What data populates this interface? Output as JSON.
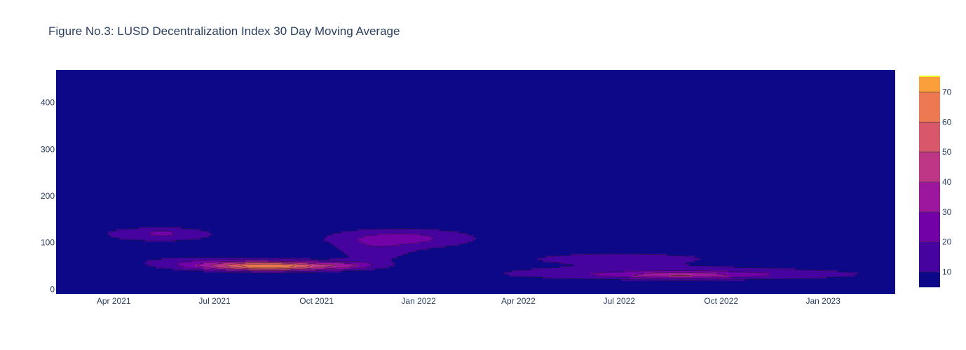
{
  "chart_data": {
    "type": "heatmap",
    "subtype": "contour",
    "title": "Figure No.3: LUSD Decentralization Index 30 Day Moving Average",
    "xlabel": "",
    "ylabel": "",
    "x_tick_labels": [
      "Apr 2021",
      "Jul 2021",
      "Oct 2021",
      "Jan 2022",
      "Apr 2022",
      "Jul 2022",
      "Oct 2022",
      "Jan 2023"
    ],
    "x_ticks": [
      "2021-04-01",
      "2021-07-01",
      "2021-10-01",
      "2022-01-01",
      "2022-04-01",
      "2022-07-01",
      "2022-10-01",
      "2023-01-01"
    ],
    "xlim": [
      "2021-02-08",
      "2023-03-07"
    ],
    "y_tick_labels": [
      "0",
      "100",
      "200",
      "300",
      "400"
    ],
    "y_ticks": [
      0,
      100,
      200,
      300,
      400
    ],
    "ylim": [
      -10,
      470
    ],
    "grid": false,
    "colorscale": "Plasma",
    "background_color": "#0d0887",
    "colorbar": {
      "tick_labels": [
        "10",
        "20",
        "30",
        "40",
        "50",
        "60",
        "70"
      ],
      "ticks": [
        10,
        20,
        30,
        40,
        50,
        60,
        70
      ],
      "range": [
        5,
        75
      ],
      "levels": [
        {
          "lo": 5,
          "hi": 10,
          "color": "#0d0887"
        },
        {
          "lo": 10,
          "hi": 20,
          "color": "#46039f"
        },
        {
          "lo": 20,
          "hi": 30,
          "color": "#7201a8"
        },
        {
          "lo": 30,
          "hi": 40,
          "color": "#9c179e"
        },
        {
          "lo": 40,
          "hi": 50,
          "color": "#bd3786"
        },
        {
          "lo": 50,
          "hi": 60,
          "color": "#d8576b"
        },
        {
          "lo": 60,
          "hi": 70,
          "color": "#ed7953"
        },
        {
          "lo": 70,
          "hi": 75,
          "color": "#fb9f3a"
        },
        {
          "lo": 75,
          "hi": 80,
          "color": "#fdca26"
        },
        {
          "lo": 80,
          "hi": 85,
          "color": "#f0f921"
        }
      ]
    },
    "density_peaks": [
      {
        "date": "2021-05-12",
        "y": 118,
        "value": 26
      },
      {
        "date": "2021-08-20",
        "y": 50,
        "value": 76
      },
      {
        "date": "2021-12-15",
        "y": 110,
        "value": 34
      },
      {
        "date": "2022-08-25",
        "y": 30,
        "value": 60
      }
    ]
  }
}
